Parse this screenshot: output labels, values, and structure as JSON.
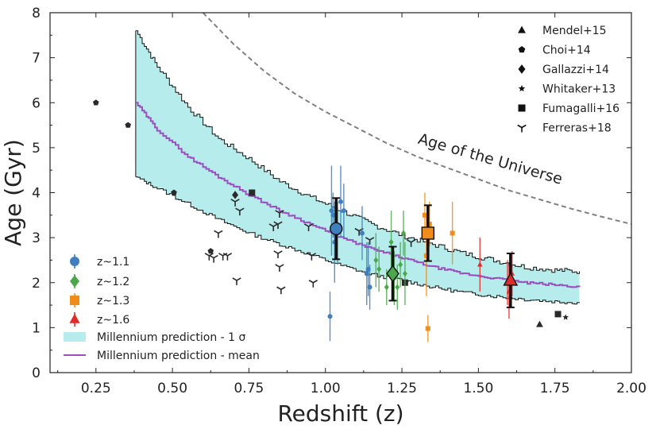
{
  "chart_data": {
    "type": "scatter",
    "xlabel": "Redshift (z)",
    "ylabel": "Age (Gyr)",
    "xlim": [
      0.1,
      2.0
    ],
    "ylim": [
      0,
      8
    ],
    "x_ticks": [
      0.25,
      0.5,
      0.75,
      1.0,
      1.25,
      1.5,
      1.75,
      2.0
    ],
    "x_tick_labels": [
      "0.25",
      "0.50",
      "0.75",
      "1.00",
      "1.25",
      "1.50",
      "1.75",
      "2.00"
    ],
    "y_ticks": [
      0,
      1,
      2,
      3,
      4,
      5,
      6,
      7,
      8
    ],
    "y_tick_labels": [
      "0",
      "1",
      "2",
      "3",
      "4",
      "5",
      "6",
      "7",
      "8"
    ],
    "annotation": "Age of the Universe",
    "age_of_universe": {
      "x": [
        0.6,
        0.7,
        0.8,
        0.9,
        1.0,
        1.1,
        1.2,
        1.3,
        1.4,
        1.5,
        1.6,
        1.7,
        1.8,
        1.9,
        2.0
      ],
      "y": [
        8.0,
        7.3,
        6.7,
        6.2,
        5.8,
        5.45,
        5.1,
        4.8,
        4.55,
        4.3,
        4.05,
        3.85,
        3.65,
        3.47,
        3.3
      ],
      "color": "#808080"
    },
    "millennium_mean": {
      "name": "Millennium prediction - mean",
      "color": "#9b4fc0",
      "x": [
        0.38,
        0.45,
        0.55,
        0.65,
        0.75,
        0.85,
        0.95,
        1.05,
        1.15,
        1.25,
        1.35,
        1.45,
        1.55,
        1.65,
        1.75,
        1.83
      ],
      "y": [
        6.0,
        5.4,
        4.8,
        4.35,
        3.95,
        3.6,
        3.3,
        3.0,
        2.75,
        2.55,
        2.35,
        2.2,
        2.1,
        2.0,
        1.95,
        1.9
      ]
    },
    "millennium_band": {
      "name": "Millennium prediction - 1 σ",
      "color": "#b6ecec",
      "x": [
        0.38,
        0.45,
        0.55,
        0.65,
        0.75,
        0.85,
        0.95,
        1.05,
        1.15,
        1.25,
        1.35,
        1.45,
        1.55,
        1.65,
        1.75,
        1.83
      ],
      "upper": [
        7.6,
        6.8,
        5.9,
        5.2,
        4.75,
        4.25,
        3.9,
        3.6,
        3.3,
        3.05,
        2.85,
        2.65,
        2.5,
        2.35,
        2.28,
        2.25
      ],
      "lower": [
        4.35,
        4.1,
        3.75,
        3.4,
        3.1,
        2.85,
        2.62,
        2.38,
        2.18,
        2.05,
        1.9,
        1.78,
        1.7,
        1.63,
        1.58,
        1.55
      ]
    },
    "literature": [
      {
        "name": "Mendel+15",
        "marker": "triangle",
        "points": [
          [
            1.7,
            1.07
          ]
        ]
      },
      {
        "name": "Choi+14",
        "marker": "pentagon",
        "points": [
          [
            0.25,
            6.0
          ],
          [
            0.355,
            5.5
          ],
          [
            0.505,
            4.0
          ],
          [
            0.625,
            2.7
          ]
        ]
      },
      {
        "name": "Gallazzi+14",
        "marker": "diamond",
        "points": [
          [
            0.705,
            3.95
          ]
        ]
      },
      {
        "name": "Whitaker+13",
        "marker": "star",
        "points": [
          [
            1.785,
            1.23
          ]
        ]
      },
      {
        "name": "Fumagalli+16",
        "marker": "square",
        "points": [
          [
            0.76,
            4.0
          ],
          [
            1.26,
            2.0
          ],
          [
            1.76,
            1.3
          ]
        ]
      },
      {
        "name": "Ferreras+18",
        "marker": "tri_down",
        "points": [
          [
            0.62,
            2.6
          ],
          [
            0.635,
            2.55
          ],
          [
            0.65,
            3.1
          ],
          [
            0.665,
            2.6
          ],
          [
            0.68,
            2.6
          ],
          [
            0.705,
            3.8
          ],
          [
            0.71,
            2.05
          ],
          [
            0.72,
            3.6
          ],
          [
            0.83,
            3.25
          ],
          [
            0.845,
            3.3
          ],
          [
            0.85,
            3.55
          ],
          [
            0.845,
            2.65
          ],
          [
            0.85,
            2.35
          ],
          [
            0.855,
            1.85
          ],
          [
            0.945,
            3.25
          ],
          [
            0.955,
            2.6
          ],
          [
            0.96,
            2.0
          ],
          [
            1.11,
            3.15
          ],
          [
            1.145,
            2.95
          ],
          [
            1.28,
            2.9
          ]
        ]
      }
    ],
    "samples": [
      {
        "name": "z~1.1",
        "color": "#3f7fbf",
        "marker": "circle",
        "mean": {
          "x": 1.035,
          "y": 3.2,
          "yerr": 0.68
        },
        "points": [
          [
            1.015,
            1.25,
            0.55
          ],
          [
            1.02,
            3.6,
            1.0
          ],
          [
            1.025,
            3.5,
            0.5
          ],
          [
            1.03,
            2.9,
            0.9
          ],
          [
            1.04,
            3.1,
            0.7
          ],
          [
            1.05,
            3.8,
            0.8
          ],
          [
            1.06,
            3.6,
            0.6
          ],
          [
            1.12,
            3.1,
            0.6
          ],
          [
            1.135,
            2.2,
            0.7
          ],
          [
            1.14,
            2.3,
            0.6
          ],
          [
            1.145,
            1.9,
            0.5
          ]
        ]
      },
      {
        "name": "z~1.2",
        "color": "#4aa84a",
        "marker": "diamond",
        "mean": {
          "x": 1.22,
          "y": 2.2,
          "yerr": 0.6
        },
        "points": [
          [
            1.165,
            2.5,
            0.6
          ],
          [
            1.175,
            2.3,
            0.5
          ],
          [
            1.2,
            1.9,
            0.4
          ],
          [
            1.215,
            2.9,
            0.7
          ],
          [
            1.225,
            2.1,
            0.6
          ],
          [
            1.235,
            1.9,
            0.5
          ],
          [
            1.245,
            2.4,
            0.5
          ],
          [
            1.255,
            3.1,
            0.5
          ],
          [
            1.26,
            2.2,
            0.7
          ]
        ]
      },
      {
        "name": "z~1.3",
        "color": "#f08c1a",
        "marker": "square",
        "mean": {
          "x": 1.335,
          "y": 3.1,
          "yerr": 0.62
        },
        "points": [
          [
            1.325,
            3.5,
            0.5
          ],
          [
            1.33,
            2.6,
            0.9
          ],
          [
            1.335,
            0.98,
            0.3
          ],
          [
            1.34,
            3.3,
            0.5
          ],
          [
            1.415,
            3.1,
            0.7
          ]
        ]
      },
      {
        "name": "z~1.6",
        "color": "#e02b2b",
        "marker": "triangle",
        "mean": {
          "x": 1.605,
          "y": 2.05,
          "yerr": 0.6
        },
        "points": [
          [
            1.505,
            2.4,
            0.6
          ],
          [
            1.595,
            2.0,
            0.5
          ],
          [
            1.6,
            1.8,
            0.6
          ],
          [
            1.61,
            2.2,
            0.5
          ]
        ]
      }
    ],
    "legend_left": {
      "placement": "lower-left",
      "entries": [
        "z~1.1",
        "z~1.2",
        "z~1.3",
        "z~1.6",
        "Millennium prediction - 1 σ",
        "Millennium prediction - mean"
      ]
    },
    "legend_right": {
      "placement": "upper-right",
      "entries": [
        "Mendel+15",
        "Choi+14",
        "Gallazzi+14",
        "Whitaker+13",
        "Fumagalli+16",
        "Ferreras+18"
      ]
    }
  }
}
